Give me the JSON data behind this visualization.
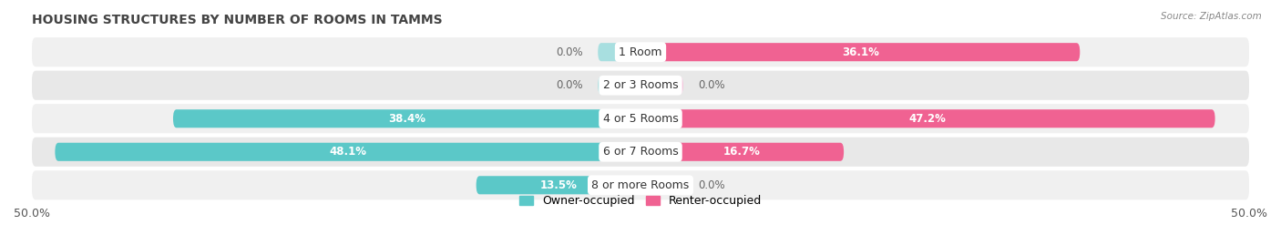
{
  "title": "HOUSING STRUCTURES BY NUMBER OF ROOMS IN TAMMS",
  "source": "Source: ZipAtlas.com",
  "categories": [
    "1 Room",
    "2 or 3 Rooms",
    "4 or 5 Rooms",
    "6 or 7 Rooms",
    "8 or more Rooms"
  ],
  "owner_values": [
    0.0,
    0.0,
    38.4,
    48.1,
    13.5
  ],
  "renter_values": [
    36.1,
    0.0,
    47.2,
    16.7,
    0.0
  ],
  "owner_color": "#5bc8c8",
  "owner_color_light": "#a8dfe0",
  "renter_color": "#f06292",
  "renter_color_light": "#f8bbd9",
  "row_colors": [
    "#f0f0f0",
    "#e8e8e8"
  ],
  "xlim": [
    -50,
    50
  ],
  "bar_height": 0.55,
  "title_fontsize": 10,
  "label_fontsize": 9,
  "value_fontsize": 8.5,
  "axis_label_fontsize": 9,
  "legend_fontsize": 9,
  "min_stub": 3.5
}
